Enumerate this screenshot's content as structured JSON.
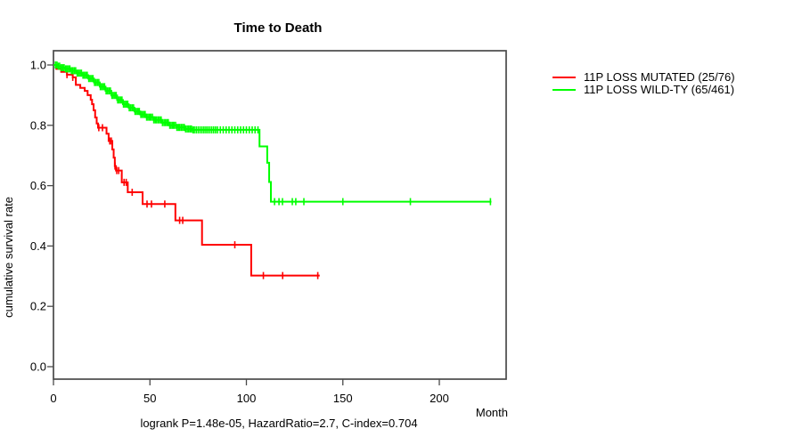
{
  "chart_data": {
    "type": "line",
    "subtype": "kaplan-meier-step",
    "title": "Time to Death",
    "xlabel": "Month",
    "ylabel": "cumulative survival rate",
    "footer": "logrank P=1.48e-05, HazardRatio=2.7, C-index=0.704",
    "axes": {
      "x_ticks": [
        0,
        50,
        100,
        150,
        200
      ],
      "y_ticks": [
        0.0,
        0.2,
        0.4,
        0.6,
        0.8,
        1.0
      ],
      "x_range": [
        0,
        234
      ],
      "y_range": [
        0,
        1.05
      ],
      "grid": "off",
      "legend_position": "right-outside"
    },
    "series": [
      {
        "name": "11P LOSS MUTATED (25/76)",
        "events": 25,
        "n": 76,
        "color": "#ff0000",
        "steps": [
          [
            0,
            1.0
          ],
          [
            1.5,
            0.987
          ],
          [
            4,
            0.977
          ],
          [
            7,
            0.968
          ],
          [
            10,
            0.959
          ],
          [
            11.6,
            0.934
          ],
          [
            13.9,
            0.924
          ],
          [
            16.2,
            0.914
          ],
          [
            17.7,
            0.9
          ],
          [
            19.3,
            0.885
          ],
          [
            20,
            0.87
          ],
          [
            20.8,
            0.85
          ],
          [
            21.6,
            0.826
          ],
          [
            22.4,
            0.806
          ],
          [
            23.1,
            0.792
          ],
          [
            27.5,
            0.772
          ],
          [
            28.6,
            0.748
          ],
          [
            30.5,
            0.72
          ],
          [
            31.2,
            0.693
          ],
          [
            31.8,
            0.665
          ],
          [
            32.4,
            0.65
          ],
          [
            35.4,
            0.611
          ],
          [
            38.5,
            0.578
          ],
          [
            46.2,
            0.539
          ],
          [
            63.2,
            0.485
          ],
          [
            77,
            0.404
          ],
          [
            102.5,
            0.302
          ]
        ],
        "end_time": 138,
        "censor_times": [
          7,
          10,
          23.5,
          25.4,
          29.2,
          30,
          31.9,
          32.8,
          33.8,
          36.6,
          37.7,
          40.8,
          48.5,
          50.8,
          57.7,
          65.4,
          67,
          94,
          108.8,
          118.8,
          137
        ]
      },
      {
        "name": "11P LOSS WILD-TY (65/461)",
        "events": 65,
        "n": 461,
        "color": "#00ff00",
        "steps": [
          [
            0,
            1.0
          ],
          [
            2,
            0.996
          ],
          [
            4,
            0.991
          ],
          [
            6,
            0.987
          ],
          [
            9,
            0.981
          ],
          [
            12,
            0.973
          ],
          [
            15,
            0.966
          ],
          [
            18,
            0.955
          ],
          [
            21,
            0.942
          ],
          [
            24,
            0.928
          ],
          [
            27,
            0.914
          ],
          [
            30,
            0.899
          ],
          [
            33,
            0.884
          ],
          [
            36,
            0.87
          ],
          [
            39,
            0.858
          ],
          [
            42,
            0.846
          ],
          [
            45,
            0.836
          ],
          [
            48,
            0.827
          ],
          [
            52,
            0.818
          ],
          [
            56,
            0.809
          ],
          [
            60,
            0.8
          ],
          [
            64,
            0.793
          ],
          [
            68,
            0.788
          ],
          [
            72,
            0.785
          ],
          [
            106.8,
            0.73
          ],
          [
            110.8,
            0.676
          ],
          [
            111.8,
            0.612
          ],
          [
            112.7,
            0.547
          ]
        ],
        "end_time": 227,
        "censor_times": [
          1,
          1.8,
          2.5,
          3.2,
          4,
          4.8,
          5.5,
          6.3,
          7,
          7.8,
          8.5,
          9.3,
          10,
          10.8,
          11.5,
          12.3,
          13,
          13.8,
          14.5,
          15.3,
          16,
          16.8,
          17.5,
          18.3,
          19,
          19.8,
          20.5,
          21.3,
          22,
          22.8,
          23.5,
          24.3,
          25,
          25.8,
          26.5,
          27.3,
          28,
          28.8,
          29.5,
          30.3,
          31,
          31.8,
          32.5,
          33.3,
          34,
          34.8,
          35.5,
          36.3,
          37,
          37.8,
          38.5,
          39.3,
          40,
          40.8,
          41.5,
          42.3,
          43,
          43.8,
          44.5,
          45.3,
          46,
          46.8,
          47.5,
          48.3,
          49,
          49.8,
          50.5,
          51.3,
          52,
          52.8,
          53.5,
          54.3,
          55,
          55.8,
          56.5,
          57.3,
          58,
          58.8,
          59.5,
          60.3,
          61,
          61.8,
          62.5,
          63.3,
          64,
          64.8,
          65.5,
          66.3,
          67,
          67.8,
          68.5,
          69.3,
          70,
          70.8,
          71.5,
          72.3,
          73,
          74,
          75,
          76,
          77,
          78,
          79,
          80,
          81,
          82,
          83,
          84,
          85,
          86.5,
          88,
          89.5,
          91,
          92.5,
          94,
          95.5,
          97,
          98.5,
          100,
          101.5,
          103,
          104.5,
          106,
          114.6,
          116.9,
          118.7,
          123.8,
          125.6,
          129.8,
          150,
          185,
          226.5
        ]
      }
    ]
  }
}
